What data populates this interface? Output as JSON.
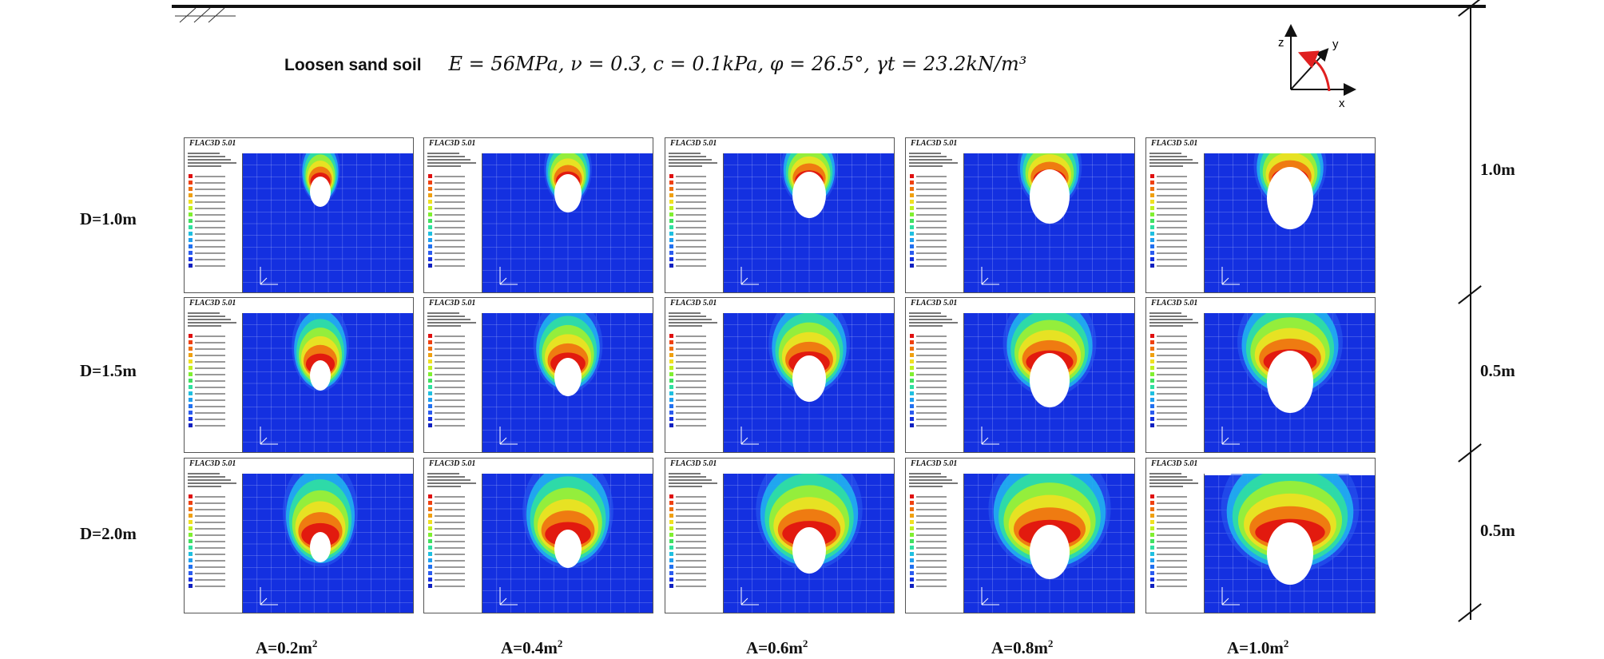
{
  "soil": {
    "label": "Loosen sand soil",
    "params": "E = 56MPa, ν = 0.3, c = 0.1kPa, φ = 26.5°, γt = 23.2kN/m³"
  },
  "axes": {
    "z": "z",
    "y": "y",
    "x": "x",
    "rotation_color": "#e02020"
  },
  "rows": [
    "D=1.0m",
    "D=1.5m",
    "D=2.0m"
  ],
  "cols": [
    {
      "label": "A=0.2m",
      "exp": "2"
    },
    {
      "label": "A=0.4m",
      "exp": "2"
    },
    {
      "label": "A=0.6m",
      "exp": "2"
    },
    {
      "label": "A=0.8m",
      "exp": "2"
    },
    {
      "label": "A=1.0m",
      "exp": "2"
    }
  ],
  "depths": [
    "1.0m",
    "0.5m",
    "0.5m"
  ],
  "panel_title": "FLAC3D 5.01",
  "colors": {
    "field": "#1430e0",
    "mesh": "#c8d2ff",
    "cavity": "#ffffff",
    "contour": [
      "#2a5cf0",
      "#20b0f0",
      "#30e0a0",
      "#a0f030",
      "#f0e020",
      "#f07010",
      "#e01010"
    ]
  }
}
